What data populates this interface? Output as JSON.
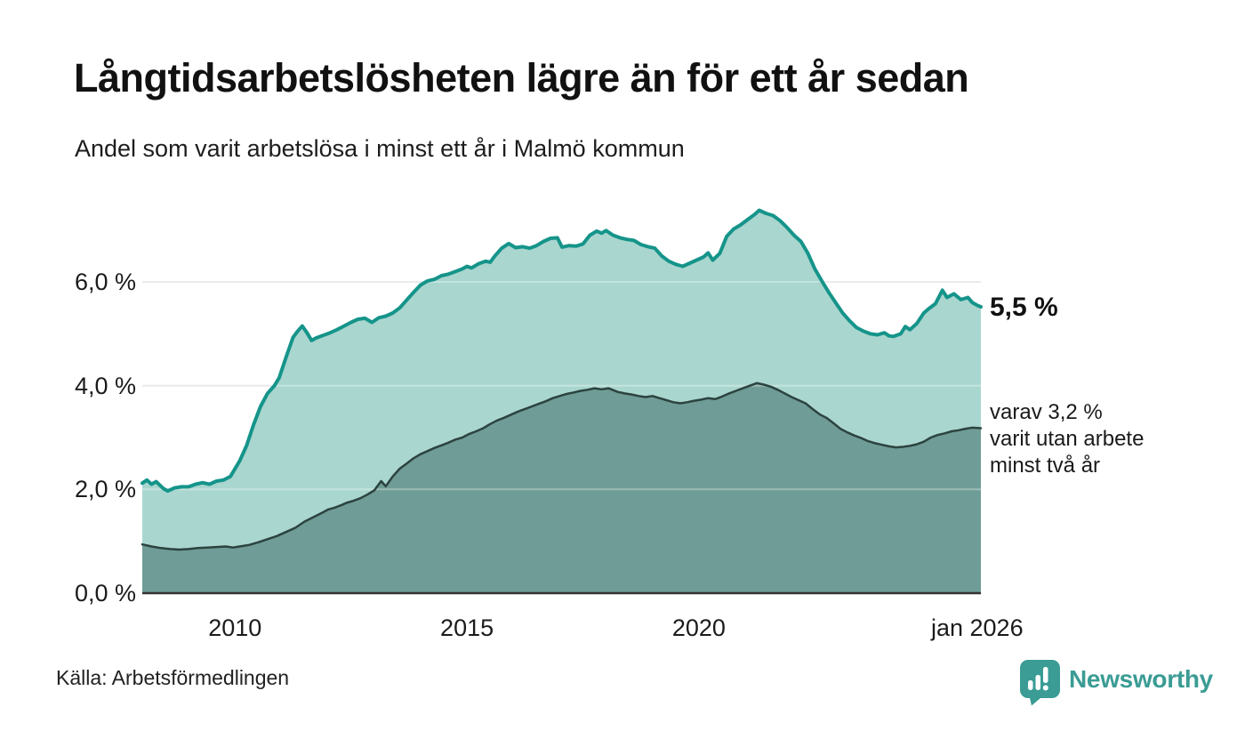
{
  "header": {
    "title": "Långtidsarbetslösheten lägre än för ett år sedan",
    "subtitle": "Andel som varit arbetslösa i minst ett år i Malmö kommun"
  },
  "chart_data": {
    "type": "area",
    "title": "Långtidsarbetslösheten lägre än för ett år sedan",
    "subtitle": "Andel som varit arbetslösa i minst ett år i Malmö kommun",
    "unit": "%",
    "stacked": false,
    "grid": true,
    "grid_color": "#e2e2e6",
    "grid_overlay_color": "rgba(255,255,255,0.32)",
    "baseline_color": "#333333",
    "xlim": [
      2008.0,
      2026.08
    ],
    "ylim": [
      0,
      7.5
    ],
    "x_ticks": [
      {
        "x": 2010,
        "label": "2010"
      },
      {
        "x": 2015,
        "label": "2015"
      },
      {
        "x": 2020,
        "label": "2020"
      },
      {
        "x": 2026,
        "label": "jan 2026"
      }
    ],
    "y_ticks": [
      {
        "value": 0,
        "label": "0,0 %"
      },
      {
        "value": 2,
        "label": "2,0 %"
      },
      {
        "value": 4,
        "label": "4,0 %"
      },
      {
        "value": 6,
        "label": "6,0 %"
      }
    ],
    "series": [
      {
        "name": "Andel som varit arbetslösa i minst ett år",
        "color": "#15948a",
        "fill": "#a9d6cf",
        "stroke_width": 4,
        "latest_value": 5.5,
        "points": [
          [
            2008.0,
            2.12
          ],
          [
            2008.1,
            2.18
          ],
          [
            2008.2,
            2.1
          ],
          [
            2008.3,
            2.15
          ],
          [
            2008.45,
            2.02
          ],
          [
            2008.55,
            1.97
          ],
          [
            2008.7,
            2.03
          ],
          [
            2008.85,
            2.05
          ],
          [
            2009.0,
            2.05
          ],
          [
            2009.15,
            2.1
          ],
          [
            2009.3,
            2.13
          ],
          [
            2009.45,
            2.1
          ],
          [
            2009.6,
            2.16
          ],
          [
            2009.75,
            2.18
          ],
          [
            2009.9,
            2.25
          ],
          [
            2010.0,
            2.4
          ],
          [
            2010.1,
            2.55
          ],
          [
            2010.25,
            2.85
          ],
          [
            2010.4,
            3.25
          ],
          [
            2010.55,
            3.6
          ],
          [
            2010.7,
            3.85
          ],
          [
            2010.85,
            4.0
          ],
          [
            2010.95,
            4.15
          ],
          [
            2011.1,
            4.55
          ],
          [
            2011.25,
            4.93
          ],
          [
            2011.35,
            5.05
          ],
          [
            2011.45,
            5.15
          ],
          [
            2011.55,
            5.02
          ],
          [
            2011.65,
            4.87
          ],
          [
            2011.75,
            4.92
          ],
          [
            2011.9,
            4.97
          ],
          [
            2012.05,
            5.02
          ],
          [
            2012.2,
            5.08
          ],
          [
            2012.35,
            5.15
          ],
          [
            2012.5,
            5.22
          ],
          [
            2012.65,
            5.28
          ],
          [
            2012.8,
            5.3
          ],
          [
            2012.95,
            5.22
          ],
          [
            2013.1,
            5.31
          ],
          [
            2013.25,
            5.34
          ],
          [
            2013.4,
            5.4
          ],
          [
            2013.55,
            5.5
          ],
          [
            2013.7,
            5.65
          ],
          [
            2013.85,
            5.8
          ],
          [
            2014.0,
            5.94
          ],
          [
            2014.15,
            6.02
          ],
          [
            2014.3,
            6.05
          ],
          [
            2014.45,
            6.12
          ],
          [
            2014.6,
            6.15
          ],
          [
            2014.75,
            6.2
          ],
          [
            2014.9,
            6.25
          ],
          [
            2015.0,
            6.3
          ],
          [
            2015.1,
            6.27
          ],
          [
            2015.25,
            6.35
          ],
          [
            2015.4,
            6.4
          ],
          [
            2015.5,
            6.38
          ],
          [
            2015.6,
            6.5
          ],
          [
            2015.75,
            6.65
          ],
          [
            2015.9,
            6.74
          ],
          [
            2016.05,
            6.66
          ],
          [
            2016.2,
            6.68
          ],
          [
            2016.35,
            6.65
          ],
          [
            2016.5,
            6.7
          ],
          [
            2016.65,
            6.78
          ],
          [
            2016.8,
            6.84
          ],
          [
            2016.95,
            6.85
          ],
          [
            2017.05,
            6.67
          ],
          [
            2017.2,
            6.7
          ],
          [
            2017.35,
            6.69
          ],
          [
            2017.5,
            6.73
          ],
          [
            2017.65,
            6.9
          ],
          [
            2017.8,
            6.98
          ],
          [
            2017.9,
            6.94
          ],
          [
            2018.0,
            6.99
          ],
          [
            2018.15,
            6.9
          ],
          [
            2018.3,
            6.85
          ],
          [
            2018.45,
            6.82
          ],
          [
            2018.6,
            6.8
          ],
          [
            2018.75,
            6.72
          ],
          [
            2018.9,
            6.68
          ],
          [
            2019.05,
            6.65
          ],
          [
            2019.2,
            6.5
          ],
          [
            2019.35,
            6.4
          ],
          [
            2019.5,
            6.34
          ],
          [
            2019.65,
            6.3
          ],
          [
            2019.8,
            6.36
          ],
          [
            2019.95,
            6.42
          ],
          [
            2020.1,
            6.48
          ],
          [
            2020.2,
            6.56
          ],
          [
            2020.3,
            6.42
          ],
          [
            2020.45,
            6.55
          ],
          [
            2020.6,
            6.88
          ],
          [
            2020.75,
            7.02
          ],
          [
            2020.9,
            7.1
          ],
          [
            2021.05,
            7.2
          ],
          [
            2021.2,
            7.3
          ],
          [
            2021.3,
            7.38
          ],
          [
            2021.45,
            7.32
          ],
          [
            2021.6,
            7.28
          ],
          [
            2021.75,
            7.18
          ],
          [
            2021.9,
            7.05
          ],
          [
            2022.05,
            6.9
          ],
          [
            2022.2,
            6.78
          ],
          [
            2022.35,
            6.55
          ],
          [
            2022.5,
            6.25
          ],
          [
            2022.65,
            6.02
          ],
          [
            2022.8,
            5.8
          ],
          [
            2022.95,
            5.6
          ],
          [
            2023.1,
            5.4
          ],
          [
            2023.25,
            5.25
          ],
          [
            2023.4,
            5.12
          ],
          [
            2023.55,
            5.05
          ],
          [
            2023.7,
            5.0
          ],
          [
            2023.85,
            4.98
          ],
          [
            2024.0,
            5.02
          ],
          [
            2024.1,
            4.96
          ],
          [
            2024.2,
            4.95
          ],
          [
            2024.35,
            5.0
          ],
          [
            2024.45,
            5.14
          ],
          [
            2024.55,
            5.08
          ],
          [
            2024.7,
            5.2
          ],
          [
            2024.85,
            5.4
          ],
          [
            2024.95,
            5.48
          ],
          [
            2025.1,
            5.58
          ],
          [
            2025.25,
            5.84
          ],
          [
            2025.35,
            5.7
          ],
          [
            2025.5,
            5.77
          ],
          [
            2025.65,
            5.66
          ],
          [
            2025.8,
            5.7
          ],
          [
            2025.9,
            5.6
          ],
          [
            2026.0,
            5.55
          ],
          [
            2026.08,
            5.52
          ]
        ]
      },
      {
        "name": "varav arbetslösa minst två år",
        "color": "#2c433f",
        "fill": "#6f9c96",
        "stroke_width": 2.5,
        "latest_value": 3.2,
        "points": [
          [
            2008.0,
            0.94
          ],
          [
            2008.2,
            0.9
          ],
          [
            2008.4,
            0.87
          ],
          [
            2008.6,
            0.85
          ],
          [
            2008.8,
            0.84
          ],
          [
            2009.0,
            0.85
          ],
          [
            2009.2,
            0.87
          ],
          [
            2009.4,
            0.88
          ],
          [
            2009.6,
            0.89
          ],
          [
            2009.8,
            0.9
          ],
          [
            2009.95,
            0.88
          ],
          [
            2010.1,
            0.9
          ],
          [
            2010.3,
            0.93
          ],
          [
            2010.5,
            0.98
          ],
          [
            2010.7,
            1.04
          ],
          [
            2010.9,
            1.1
          ],
          [
            2011.1,
            1.18
          ],
          [
            2011.3,
            1.26
          ],
          [
            2011.5,
            1.38
          ],
          [
            2011.7,
            1.47
          ],
          [
            2011.9,
            1.56
          ],
          [
            2012.0,
            1.61
          ],
          [
            2012.15,
            1.65
          ],
          [
            2012.3,
            1.7
          ],
          [
            2012.4,
            1.74
          ],
          [
            2012.55,
            1.78
          ],
          [
            2012.7,
            1.83
          ],
          [
            2012.85,
            1.9
          ],
          [
            2013.0,
            1.98
          ],
          [
            2013.1,
            2.1
          ],
          [
            2013.15,
            2.16
          ],
          [
            2013.25,
            2.06
          ],
          [
            2013.4,
            2.25
          ],
          [
            2013.55,
            2.4
          ],
          [
            2013.7,
            2.5
          ],
          [
            2013.85,
            2.6
          ],
          [
            2014.0,
            2.68
          ],
          [
            2014.15,
            2.74
          ],
          [
            2014.3,
            2.8
          ],
          [
            2014.45,
            2.85
          ],
          [
            2014.6,
            2.9
          ],
          [
            2014.75,
            2.96
          ],
          [
            2014.9,
            3.0
          ],
          [
            2015.05,
            3.07
          ],
          [
            2015.2,
            3.12
          ],
          [
            2015.35,
            3.18
          ],
          [
            2015.5,
            3.26
          ],
          [
            2015.65,
            3.33
          ],
          [
            2015.8,
            3.38
          ],
          [
            2015.95,
            3.44
          ],
          [
            2016.1,
            3.5
          ],
          [
            2016.25,
            3.55
          ],
          [
            2016.4,
            3.6
          ],
          [
            2016.55,
            3.65
          ],
          [
            2016.7,
            3.7
          ],
          [
            2016.85,
            3.76
          ],
          [
            2017.0,
            3.8
          ],
          [
            2017.15,
            3.84
          ],
          [
            2017.3,
            3.87
          ],
          [
            2017.45,
            3.9
          ],
          [
            2017.6,
            3.92
          ],
          [
            2017.75,
            3.95
          ],
          [
            2017.9,
            3.93
          ],
          [
            2018.05,
            3.95
          ],
          [
            2018.25,
            3.88
          ],
          [
            2018.4,
            3.85
          ],
          [
            2018.55,
            3.83
          ],
          [
            2018.7,
            3.8
          ],
          [
            2018.85,
            3.78
          ],
          [
            2019.0,
            3.8
          ],
          [
            2019.15,
            3.76
          ],
          [
            2019.3,
            3.72
          ],
          [
            2019.45,
            3.68
          ],
          [
            2019.6,
            3.66
          ],
          [
            2019.75,
            3.68
          ],
          [
            2019.9,
            3.71
          ],
          [
            2020.05,
            3.73
          ],
          [
            2020.2,
            3.76
          ],
          [
            2020.35,
            3.74
          ],
          [
            2020.5,
            3.79
          ],
          [
            2020.65,
            3.85
          ],
          [
            2020.8,
            3.9
          ],
          [
            2020.95,
            3.95
          ],
          [
            2021.1,
            4.0
          ],
          [
            2021.25,
            4.05
          ],
          [
            2021.4,
            4.02
          ],
          [
            2021.55,
            3.98
          ],
          [
            2021.7,
            3.92
          ],
          [
            2021.85,
            3.85
          ],
          [
            2022.0,
            3.78
          ],
          [
            2022.15,
            3.72
          ],
          [
            2022.3,
            3.66
          ],
          [
            2022.45,
            3.55
          ],
          [
            2022.6,
            3.45
          ],
          [
            2022.75,
            3.38
          ],
          [
            2022.9,
            3.28
          ],
          [
            2023.05,
            3.17
          ],
          [
            2023.2,
            3.1
          ],
          [
            2023.35,
            3.04
          ],
          [
            2023.5,
            2.99
          ],
          [
            2023.65,
            2.93
          ],
          [
            2023.8,
            2.89
          ],
          [
            2023.95,
            2.86
          ],
          [
            2024.1,
            2.83
          ],
          [
            2024.25,
            2.81
          ],
          [
            2024.4,
            2.82
          ],
          [
            2024.55,
            2.84
          ],
          [
            2024.7,
            2.87
          ],
          [
            2024.85,
            2.92
          ],
          [
            2025.0,
            3.0
          ],
          [
            2025.15,
            3.05
          ],
          [
            2025.3,
            3.08
          ],
          [
            2025.45,
            3.12
          ],
          [
            2025.6,
            3.14
          ],
          [
            2025.75,
            3.17
          ],
          [
            2025.9,
            3.19
          ],
          [
            2026.08,
            3.18
          ]
        ]
      }
    ]
  },
  "annotations": {
    "latest": "5,5 %",
    "secondary": "varav 3,2 %\nvarit utan arbete\nminst två år"
  },
  "footer": {
    "source": "Källa: Arbetsförmedlingen",
    "brand": "Newsworthy",
    "brand_color": "#3a9c94"
  }
}
